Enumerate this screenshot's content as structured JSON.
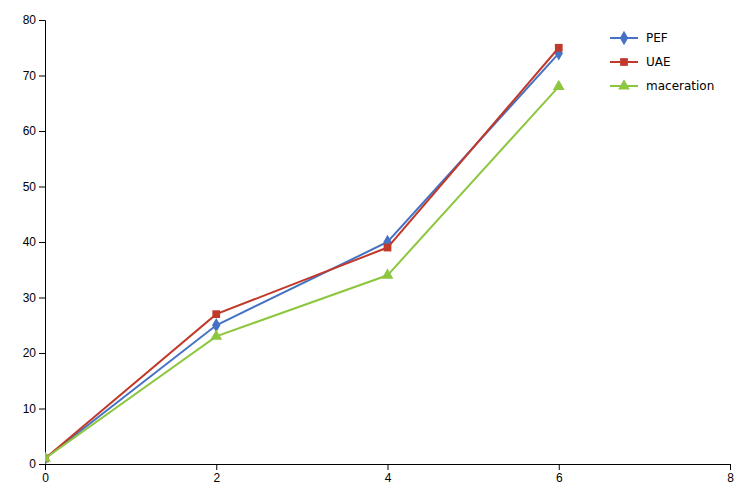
{
  "chart_data": {
    "type": "line",
    "x": [
      0,
      2,
      4,
      6
    ],
    "series": [
      {
        "name": "PEF",
        "color": "#4472c4",
        "marker": "diamond",
        "values": [
          1,
          25,
          40,
          74
        ]
      },
      {
        "name": "UAE",
        "color": "#c0392b",
        "marker": "square",
        "values": [
          1,
          27,
          39,
          75
        ]
      },
      {
        "name": "maceration",
        "color": "#8dc63f",
        "marker": "triangle",
        "values": [
          1,
          23,
          34,
          68
        ]
      }
    ],
    "xlim": [
      0,
      8
    ],
    "ylim": [
      0,
      80
    ],
    "xticks": [
      0,
      2,
      4,
      6,
      8
    ],
    "yticks": [
      0,
      10,
      20,
      30,
      40,
      50,
      60,
      70,
      80
    ],
    "grid": false,
    "legend": "upper right"
  }
}
